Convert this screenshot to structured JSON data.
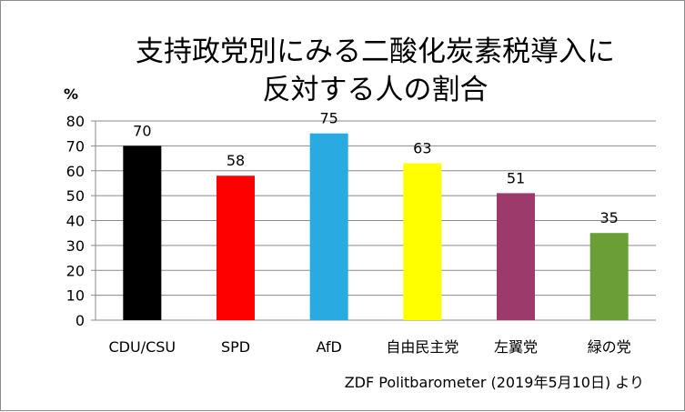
{
  "chart_data": {
    "type": "bar",
    "title_line1": "支持政党別にみる二酸化炭素税導入に",
    "title_line2": "反対する人の割合",
    "unit_label": "%",
    "categories": [
      "CDU/CSU",
      "SPD",
      "AfD",
      "自由民主党",
      "左翼党",
      "緑の党"
    ],
    "values": [
      70,
      58,
      75,
      63,
      51,
      35
    ],
    "bar_colors": [
      "#000000",
      "#ff0000",
      "#29abe2",
      "#ffff00",
      "#9b3a6b",
      "#6b9e36"
    ],
    "ylim": [
      0,
      80
    ],
    "yticks": [
      0,
      10,
      20,
      30,
      40,
      50,
      60,
      70,
      80
    ],
    "grid": true,
    "source": "ZDF Politbarometer (2019年5月10日) より"
  }
}
